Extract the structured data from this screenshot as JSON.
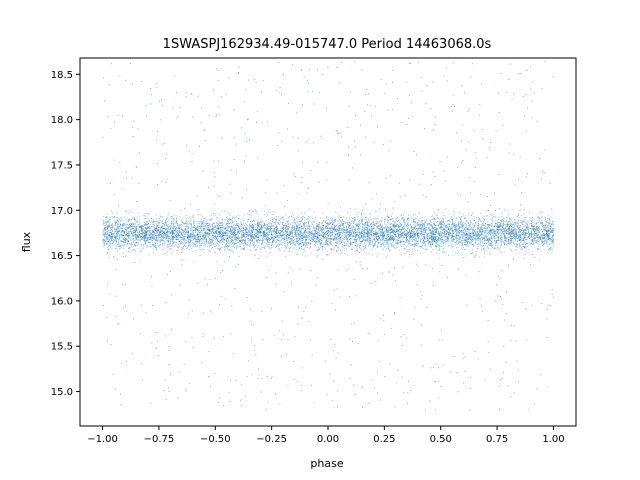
{
  "chart_data": {
    "type": "scatter",
    "title": "1SWASPJ162934.49-015747.0 Period 14463068.0s",
    "xlabel": "phase",
    "ylabel": "flux",
    "xlim": [
      -1.1,
      1.1
    ],
    "ylim": [
      14.62,
      18.68
    ],
    "xticks": [
      {
        "value": -1.0,
        "label": "−1.00"
      },
      {
        "value": -0.75,
        "label": "−0.75"
      },
      {
        "value": -0.5,
        "label": "−0.50"
      },
      {
        "value": -0.25,
        "label": "−0.25"
      },
      {
        "value": 0.0,
        "label": "0.00"
      },
      {
        "value": 0.25,
        "label": "0.25"
      },
      {
        "value": 0.5,
        "label": "0.50"
      },
      {
        "value": 0.75,
        "label": "0.75"
      },
      {
        "value": 1.0,
        "label": "1.00"
      }
    ],
    "yticks": [
      {
        "value": 15.0,
        "label": "15.0"
      },
      {
        "value": 15.5,
        "label": "15.5"
      },
      {
        "value": 16.0,
        "label": "16.0"
      },
      {
        "value": 16.5,
        "label": "16.5"
      },
      {
        "value": 17.0,
        "label": "17.0"
      },
      {
        "value": 17.5,
        "label": "17.5"
      },
      {
        "value": 18.0,
        "label": "18.0"
      },
      {
        "value": 18.5,
        "label": "18.5"
      }
    ],
    "grid": false,
    "point_color": "#1f77b4",
    "series": [
      {
        "x_range": [
          -1.0,
          1.0
        ],
        "median_flux": 16.75,
        "typical_spread": [
          16.25,
          17.25
        ],
        "outlier_range": [
          14.8,
          18.65
        ],
        "points": [
          [
            -0.98,
            16.8
          ],
          [
            -0.9,
            16.5
          ],
          [
            -0.85,
            17.1
          ],
          [
            -0.8,
            16.7
          ],
          [
            -0.72,
            16.9
          ],
          [
            -0.65,
            16.4
          ],
          [
            -0.55,
            16.8
          ],
          [
            -0.45,
            16.6
          ],
          [
            -0.35,
            17.0
          ],
          [
            -0.25,
            16.7
          ],
          [
            -0.15,
            16.9
          ],
          [
            -0.05,
            16.5
          ],
          [
            0.05,
            16.8
          ],
          [
            0.15,
            17.0
          ],
          [
            0.25,
            16.6
          ],
          [
            0.35,
            16.8
          ],
          [
            0.45,
            16.7
          ],
          [
            0.55,
            16.9
          ],
          [
            0.65,
            16.5
          ],
          [
            0.75,
            16.8
          ],
          [
            0.85,
            17.0
          ],
          [
            0.95,
            16.7
          ],
          [
            -0.87,
            18.4
          ],
          [
            -0.2,
            18.5
          ],
          [
            -0.12,
            18.55
          ],
          [
            0.8,
            18.45
          ],
          [
            0.88,
            18.55
          ],
          [
            -0.7,
            15.2
          ],
          [
            0.45,
            14.9
          ],
          [
            -0.3,
            15.0
          ],
          [
            0.1,
            15.3
          ],
          [
            0.6,
            15.1
          ]
        ]
      }
    ]
  }
}
